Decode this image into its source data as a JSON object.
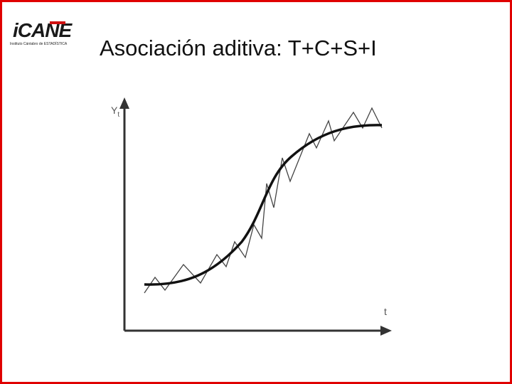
{
  "logo": {
    "name": "iCANE",
    "subtitle": "Instituto Cántabro de ESTADÍSTICA"
  },
  "title": "Asociación aditiva: T+C+S+I",
  "diagram": {
    "y_label": {
      "main": "Y",
      "sub": "t"
    },
    "x_label": "t"
  }
}
